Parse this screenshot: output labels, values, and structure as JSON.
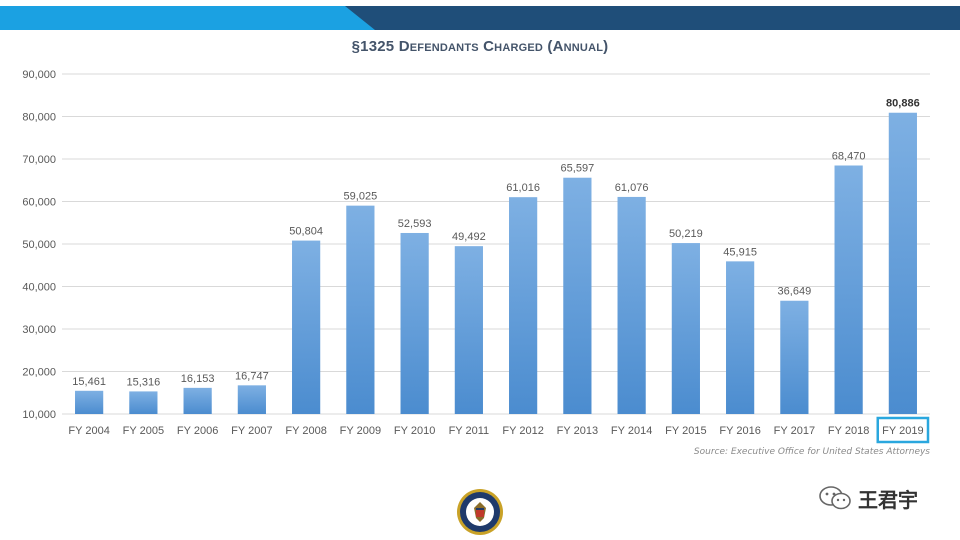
{
  "colors": {
    "banner_light": "#1ba1e2",
    "banner_dark": "#1f4e79",
    "bar_top": "#7eb0e3",
    "bar_bottom": "#4b8ccf",
    "highlight_box": "#2aa7de",
    "grid": "#d9d9d9",
    "axis_text": "#595959"
  },
  "chart_data": {
    "type": "bar",
    "title": "§1325 Defendants Charged (Annual)",
    "xlabel": "",
    "ylabel": "",
    "ylim": [
      10000,
      90000
    ],
    "yticks": [
      "10,000",
      "20,000",
      "30,000",
      "40,000",
      "50,000",
      "60,000",
      "70,000",
      "80,000",
      "90,000"
    ],
    "ytick_values": [
      10000,
      20000,
      30000,
      40000,
      50000,
      60000,
      70000,
      80000,
      90000
    ],
    "grid": true,
    "categories": [
      "FY 2004",
      "FY 2005",
      "FY 2006",
      "FY 2007",
      "FY 2008",
      "FY 2009",
      "FY 2010",
      "FY 2011",
      "FY 2012",
      "FY 2013",
      "FY 2014",
      "FY 2015",
      "FY 2016",
      "FY 2017",
      "FY 2018",
      "FY 2019"
    ],
    "values": [
      15461,
      15316,
      16153,
      16747,
      50804,
      59025,
      52593,
      49492,
      61016,
      65597,
      61076,
      50219,
      45915,
      36649,
      68470,
      80886
    ],
    "value_labels": [
      "15,461",
      "15,316",
      "16,153",
      "16,747",
      "50,804",
      "59,025",
      "52,593",
      "49,492",
      "61,016",
      "65,597",
      "61,076",
      "50,219",
      "45,915",
      "36,649",
      "68,470",
      "80,886"
    ],
    "highlighted_category": "FY 2019",
    "source": "Source: Executive Office for United States Attorneys"
  },
  "watermark": {
    "icon": "wechat-icon",
    "text": "王君宇"
  },
  "seal": {
    "icon": "doj-seal-icon"
  }
}
